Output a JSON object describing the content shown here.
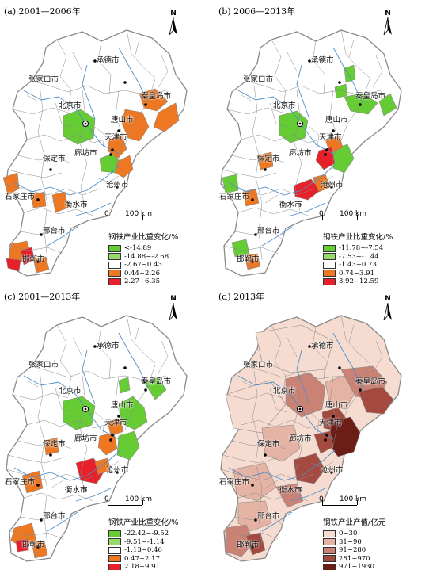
{
  "colors": {
    "green": "#66cc33",
    "white": "#ffffff",
    "orange": "#ee7722",
    "red": "#e8202a",
    "boundary": "#8a8a8a",
    "river": "#4f8ec9",
    "o1": "#f6dcd0",
    "o2": "#e5b3a3",
    "o3": "#c98274",
    "o4": "#a44a40",
    "o5": "#6b1d16"
  },
  "north_label": "N",
  "scale_labels": [
    "0",
    "100 km"
  ],
  "panels": [
    {
      "title": "(a) 2001—2006年",
      "cities": [
        "承德市",
        "张家口市",
        "北京市",
        "秦皇岛市",
        "唐山市",
        "天津市",
        "廊坊市",
        "保定市",
        "沧州市",
        "石家庄市",
        "衡水市",
        "邢台市",
        "邯郸市"
      ],
      "legend_title": "钢铁产业比重变化/%",
      "legend": [
        {
          "label": "<-14.89",
          "color": "green"
        },
        {
          "label": "-14.88~-2.68",
          "color": "#97d96b"
        },
        {
          "label": "-2.67~0.43",
          "color": "white"
        },
        {
          "label": "0.44~2.26",
          "color": "orange"
        },
        {
          "label": "2.27~6.35",
          "color": "red"
        }
      ]
    },
    {
      "title": "(b) 2006—2013年",
      "cities": [
        "承德市",
        "张家口市",
        "北京市",
        "秦皇岛市",
        "唐山市",
        "天津市",
        "廊坊市",
        "保定市",
        "沧州市",
        "石家庄市",
        "衡水市",
        "邢台市",
        "邯郸市"
      ],
      "legend_title": "钢铁产业比重变化/%",
      "legend": [
        {
          "label": "-11.78~-7.54",
          "color": "green"
        },
        {
          "label": "-7.53~-1.44",
          "color": "#97d96b"
        },
        {
          "label": "-1.43~0.73",
          "color": "white"
        },
        {
          "label": "0.74~3.91",
          "color": "orange"
        },
        {
          "label": "3.92~12.59",
          "color": "red"
        }
      ]
    },
    {
      "title": "(c) 2001—2013年",
      "cities": [
        "承德市",
        "张家口市",
        "北京市",
        "秦皇岛市",
        "唐山市",
        "天津市",
        "廊坊市",
        "保定市",
        "沧州市",
        "石家庄市",
        "衡水市",
        "邢台市",
        "邯郸市"
      ],
      "legend_title": "钢铁产业比重变化/%",
      "legend": [
        {
          "label": "-22.42~-9.52",
          "color": "green"
        },
        {
          "label": "-9.51~-1.14",
          "color": "#97d96b"
        },
        {
          "label": "-1.13~0.46",
          "color": "white"
        },
        {
          "label": "0.47~2.17",
          "color": "orange"
        },
        {
          "label": "2.18~9.91",
          "color": "red"
        }
      ]
    },
    {
      "title": "(d) 2013年",
      "cities": [
        "承德市",
        "张家口市",
        "北京市",
        "秦皇岛市",
        "唐山市",
        "天津市",
        "廊坊市",
        "保定市",
        "沧州市",
        "石家庄市",
        "衡水市",
        "邢台市",
        "邯郸市"
      ],
      "legend_title": "钢铁产业产值/亿元",
      "legend": [
        {
          "label": "0~30",
          "color": "o1"
        },
        {
          "label": "31~90",
          "color": "o2"
        },
        {
          "label": "91~280",
          "color": "o3"
        },
        {
          "label": "281~970",
          "color": "o4"
        },
        {
          "label": "971~1930",
          "color": "o5"
        }
      ]
    }
  ]
}
